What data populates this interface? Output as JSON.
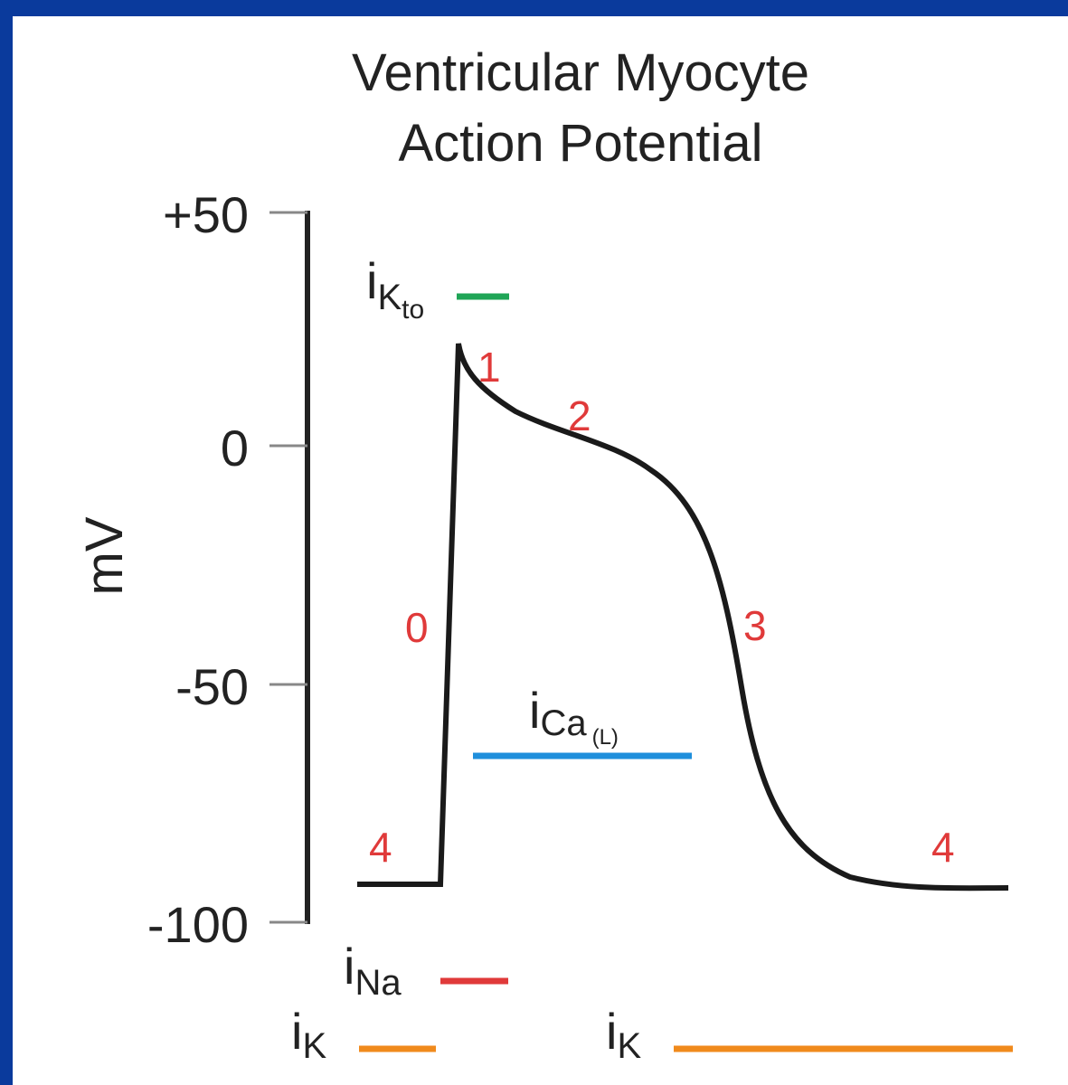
{
  "title": [
    "Ventricular Myocyte",
    "Action Potential"
  ],
  "axis_label": "mV",
  "ticks": [
    "+50",
    "0",
    "-50",
    "-100"
  ],
  "phases": [
    "1",
    "2",
    "0",
    "3",
    "4",
    "4"
  ],
  "currents": [
    {
      "symbol": "i",
      "sub": "K",
      "subsub": "to"
    },
    {
      "symbol": "i",
      "sub": "Ca",
      "subsub": "(L)"
    },
    {
      "symbol": "i",
      "sub": "Na"
    },
    {
      "symbol": "i",
      "sub": "K"
    },
    {
      "symbol": "i",
      "sub": "K"
    }
  ]
}
